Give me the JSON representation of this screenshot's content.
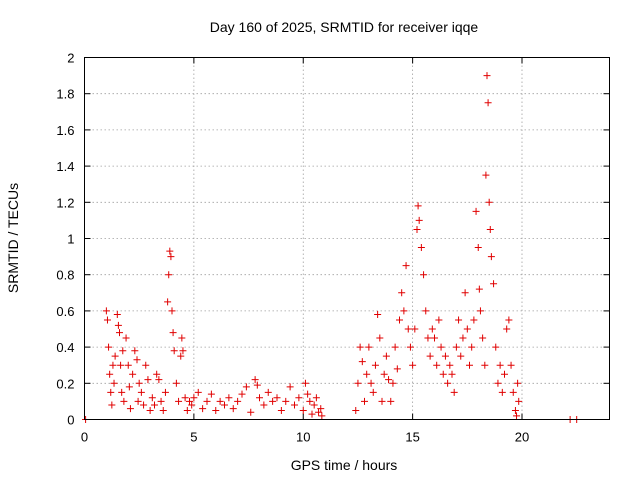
{
  "chart_data": {
    "type": "scatter",
    "title": "Day 160 of 2025, SRMTID for receiver iqqe",
    "xlabel": "GPS time / hours",
    "ylabel": "SRMTID / TECUs",
    "xlim": [
      0,
      24
    ],
    "ylim": [
      0,
      2
    ],
    "x_ticks": [
      0,
      5,
      10,
      15,
      20
    ],
    "x_tick_labels": [
      "0",
      "5",
      "10",
      "15",
      "20"
    ],
    "y_ticks": [
      0,
      0.2,
      0.4,
      0.6,
      0.8,
      1,
      1.2,
      1.4,
      1.6,
      1.8,
      2
    ],
    "y_tick_labels": [
      "0",
      "0.2",
      "0.4",
      "0.6",
      "0.8",
      "1",
      "1.2",
      "1.4",
      "1.6",
      "1.8",
      "2"
    ],
    "grid": true,
    "marker": "+",
    "marker_color": "#e00000",
    "series": [
      {
        "name": "SRMTID",
        "points": [
          [
            0.05,
            0.0
          ],
          [
            1.0,
            0.6
          ],
          [
            1.05,
            0.55
          ],
          [
            1.1,
            0.4
          ],
          [
            1.15,
            0.25
          ],
          [
            1.2,
            0.15
          ],
          [
            1.25,
            0.08
          ],
          [
            1.3,
            0.3
          ],
          [
            1.35,
            0.2
          ],
          [
            1.4,
            0.35
          ],
          [
            1.5,
            0.58
          ],
          [
            1.55,
            0.52
          ],
          [
            1.6,
            0.48
          ],
          [
            1.65,
            0.3
          ],
          [
            1.7,
            0.15
          ],
          [
            1.75,
            0.38
          ],
          [
            1.8,
            0.1
          ],
          [
            1.9,
            0.45
          ],
          [
            2.0,
            0.3
          ],
          [
            2.05,
            0.18
          ],
          [
            2.1,
            0.06
          ],
          [
            2.2,
            0.25
          ],
          [
            2.3,
            0.38
          ],
          [
            2.4,
            0.33
          ],
          [
            2.45,
            0.1
          ],
          [
            2.5,
            0.2
          ],
          [
            2.6,
            0.15
          ],
          [
            2.7,
            0.08
          ],
          [
            2.8,
            0.3
          ],
          [
            2.9,
            0.22
          ],
          [
            3.0,
            0.05
          ],
          [
            3.1,
            0.12
          ],
          [
            3.2,
            0.08
          ],
          [
            3.3,
            0.25
          ],
          [
            3.4,
            0.22
          ],
          [
            3.5,
            0.1
          ],
          [
            3.6,
            0.05
          ],
          [
            3.7,
            0.15
          ],
          [
            3.8,
            0.65
          ],
          [
            3.85,
            0.8
          ],
          [
            3.9,
            0.93
          ],
          [
            3.95,
            0.9
          ],
          [
            4.0,
            0.6
          ],
          [
            4.05,
            0.48
          ],
          [
            4.1,
            0.38
          ],
          [
            4.2,
            0.2
          ],
          [
            4.3,
            0.1
          ],
          [
            4.4,
            0.35
          ],
          [
            4.45,
            0.45
          ],
          [
            4.5,
            0.38
          ],
          [
            4.6,
            0.12
          ],
          [
            4.7,
            0.05
          ],
          [
            4.8,
            0.1
          ],
          [
            4.9,
            0.08
          ],
          [
            5.0,
            0.12
          ],
          [
            5.2,
            0.15
          ],
          [
            5.4,
            0.06
          ],
          [
            5.6,
            0.1
          ],
          [
            5.8,
            0.14
          ],
          [
            6.0,
            0.05
          ],
          [
            6.2,
            0.1
          ],
          [
            6.4,
            0.08
          ],
          [
            6.6,
            0.12
          ],
          [
            6.8,
            0.06
          ],
          [
            7.0,
            0.1
          ],
          [
            7.2,
            0.14
          ],
          [
            7.4,
            0.18
          ],
          [
            7.6,
            0.04
          ],
          [
            7.8,
            0.22
          ],
          [
            7.9,
            0.19
          ],
          [
            8.0,
            0.12
          ],
          [
            8.2,
            0.08
          ],
          [
            8.4,
            0.15
          ],
          [
            8.6,
            0.1
          ],
          [
            8.8,
            0.12
          ],
          [
            9.0,
            0.05
          ],
          [
            9.2,
            0.1
          ],
          [
            9.4,
            0.18
          ],
          [
            9.6,
            0.08
          ],
          [
            9.8,
            0.12
          ],
          [
            10.0,
            0.05
          ],
          [
            10.1,
            0.2
          ],
          [
            10.2,
            0.14
          ],
          [
            10.3,
            0.1
          ],
          [
            10.4,
            0.03
          ],
          [
            10.5,
            0.08
          ],
          [
            10.6,
            0.12
          ],
          [
            10.7,
            0.04
          ],
          [
            10.8,
            0.06
          ],
          [
            10.85,
            0.02
          ],
          [
            12.4,
            0.05
          ],
          [
            12.5,
            0.2
          ],
          [
            12.6,
            0.4
          ],
          [
            12.7,
            0.32
          ],
          [
            12.8,
            0.1
          ],
          [
            12.9,
            0.25
          ],
          [
            13.0,
            0.4
          ],
          [
            13.1,
            0.2
          ],
          [
            13.2,
            0.15
          ],
          [
            13.3,
            0.3
          ],
          [
            13.4,
            0.58
          ],
          [
            13.5,
            0.45
          ],
          [
            13.6,
            0.1
          ],
          [
            13.7,
            0.25
          ],
          [
            13.8,
            0.35
          ],
          [
            13.9,
            0.22
          ],
          [
            14.0,
            0.1
          ],
          [
            14.1,
            0.2
          ],
          [
            14.2,
            0.4
          ],
          [
            14.3,
            0.28
          ],
          [
            14.4,
            0.55
          ],
          [
            14.5,
            0.7
          ],
          [
            14.6,
            0.6
          ],
          [
            14.7,
            0.85
          ],
          [
            14.8,
            0.5
          ],
          [
            14.9,
            0.4
          ],
          [
            15.0,
            0.3
          ],
          [
            15.1,
            0.5
          ],
          [
            15.2,
            1.05
          ],
          [
            15.25,
            1.18
          ],
          [
            15.3,
            1.1
          ],
          [
            15.4,
            0.95
          ],
          [
            15.5,
            0.8
          ],
          [
            15.6,
            0.6
          ],
          [
            15.7,
            0.45
          ],
          [
            15.8,
            0.35
          ],
          [
            15.9,
            0.5
          ],
          [
            16.0,
            0.45
          ],
          [
            16.1,
            0.3
          ],
          [
            16.2,
            0.55
          ],
          [
            16.3,
            0.4
          ],
          [
            16.4,
            0.25
          ],
          [
            16.5,
            0.35
          ],
          [
            16.6,
            0.2
          ],
          [
            16.7,
            0.3
          ],
          [
            16.8,
            0.25
          ],
          [
            16.9,
            0.15
          ],
          [
            17.0,
            0.4
          ],
          [
            17.1,
            0.55
          ],
          [
            17.2,
            0.35
          ],
          [
            17.3,
            0.45
          ],
          [
            17.4,
            0.7
          ],
          [
            17.5,
            0.5
          ],
          [
            17.6,
            0.3
          ],
          [
            17.7,
            0.4
          ],
          [
            17.8,
            0.55
          ],
          [
            17.9,
            1.15
          ],
          [
            18.0,
            0.95
          ],
          [
            18.05,
            0.72
          ],
          [
            18.1,
            0.6
          ],
          [
            18.2,
            0.45
          ],
          [
            18.3,
            0.3
          ],
          [
            18.35,
            1.35
          ],
          [
            18.4,
            1.9
          ],
          [
            18.45,
            1.75
          ],
          [
            18.5,
            1.2
          ],
          [
            18.55,
            1.05
          ],
          [
            18.6,
            0.9
          ],
          [
            18.7,
            0.75
          ],
          [
            18.8,
            0.4
          ],
          [
            18.9,
            0.2
          ],
          [
            19.0,
            0.3
          ],
          [
            19.1,
            0.15
          ],
          [
            19.2,
            0.25
          ],
          [
            19.3,
            0.5
          ],
          [
            19.4,
            0.55
          ],
          [
            19.5,
            0.3
          ],
          [
            19.6,
            0.15
          ],
          [
            19.7,
            0.05
          ],
          [
            19.75,
            0.02
          ],
          [
            19.8,
            0.2
          ],
          [
            19.85,
            0.1
          ],
          [
            22.2,
            0.0
          ],
          [
            22.5,
            0.0
          ]
        ]
      }
    ]
  }
}
